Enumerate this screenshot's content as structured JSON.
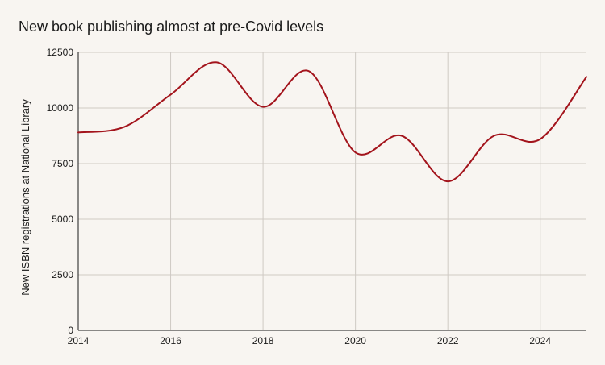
{
  "chart_data": {
    "type": "line",
    "title": "New book publishing almost at pre-Covid levels",
    "xlabel": "",
    "ylabel": "New ISBN registrations at National Library",
    "xlim": [
      2014,
      2025
    ],
    "ylim": [
      0,
      12500
    ],
    "x_ticks": [
      2014,
      2016,
      2018,
      2020,
      2022,
      2024
    ],
    "y_ticks": [
      0,
      2500,
      5000,
      7500,
      10000,
      12500
    ],
    "grid": true,
    "legend": "none",
    "series": [
      {
        "color": "#a3141c",
        "x": [
          2014,
          2015,
          2016,
          2017,
          2018,
          2019,
          2020,
          2021,
          2022,
          2023,
          2024,
          2025
        ],
        "values": [
          8900,
          9150,
          10600,
          12050,
          10050,
          11650,
          8000,
          8750,
          6700,
          8750,
          8600,
          11400
        ]
      }
    ]
  }
}
